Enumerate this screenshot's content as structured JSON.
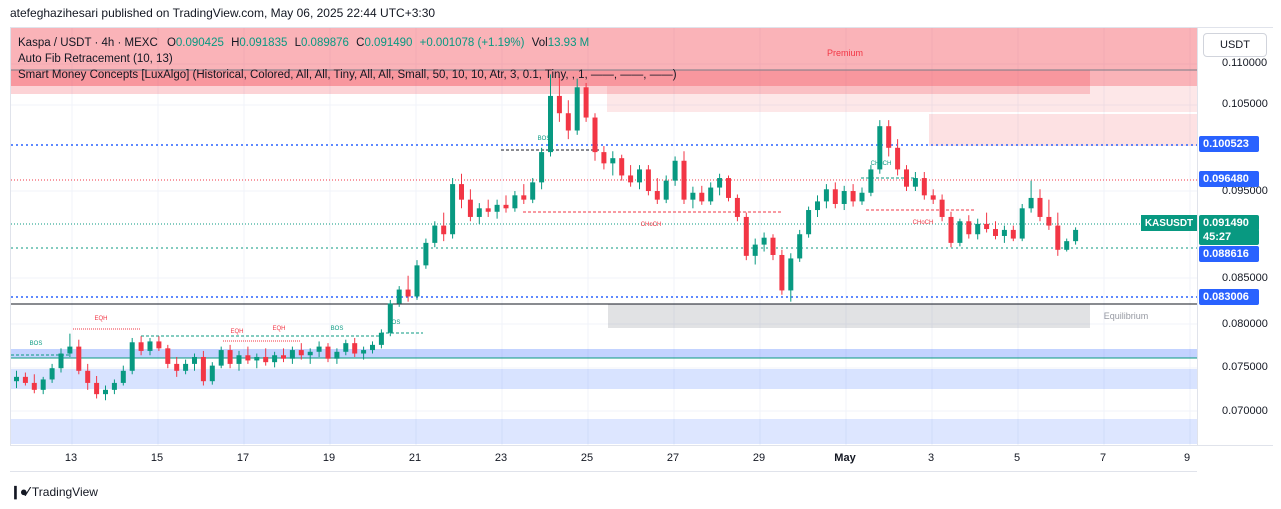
{
  "header": {
    "publish_line": "atefeghazihesari published on TradingView.com, May 06, 2025 22:44 UTC+3:30"
  },
  "legend": {
    "symbol": "Kaspa / USDT · 4h · MEXC",
    "open_label": "O",
    "open": "0.090425",
    "high_label": "H",
    "high": "0.091835",
    "low_label": "L",
    "low": "0.089876",
    "close_label": "C",
    "close": "0.091490",
    "change": "+0.001078 (+1.19%)",
    "vol_label": "Vol",
    "vol": "13.93 M",
    "indicator1": "Auto Fib Retracement (10, 13)",
    "indicator2": "Smart Money Concepts [LuxAlgo] (Historical, Colored, All, All, Tiny, All, All, Small, 50, 10, 10, Atr, 3, 0.1, Tiny, , 1, ——, ——, ——)"
  },
  "currency_button": "USDT",
  "price_axis": {
    "ticks": [
      "0.110000",
      "0.105000",
      "0.095000",
      "0.085000",
      "0.080000",
      "0.075000",
      "0.070000"
    ],
    "tags": [
      {
        "text": "0.100523",
        "color": "#2962ff"
      },
      {
        "text": "0.096480",
        "color": "#2962ff"
      },
      {
        "text": "0.091490",
        "color": "#089981"
      },
      {
        "text": "45:27",
        "color": "#089981"
      },
      {
        "text": "0.088616",
        "color": "#2962ff"
      },
      {
        "text": "0.083006",
        "color": "#2962ff"
      }
    ]
  },
  "ticker_tag": "KASUSDT",
  "time_axis": {
    "labels": [
      "13",
      "15",
      "17",
      "19",
      "21",
      "23",
      "25",
      "27",
      "29",
      "May",
      "3",
      "5",
      "7",
      "9"
    ]
  },
  "chart_labels": {
    "premium": "Premium",
    "equilibrium": "Equilibrium",
    "bos1": "BOS",
    "bos2": "BOS",
    "bos3": "BOS",
    "bos4": "BOS",
    "eqh1": "EQH",
    "eqh2": "EQH",
    "eqh3": "EQH",
    "choch1": "CHoCH",
    "choch2": "CHoCH",
    "choch3": "CHoCH"
  },
  "footer": {
    "brand": "TradingView"
  },
  "chart_data": {
    "type": "candlestick",
    "symbol": "KASUSDT",
    "timeframe": "4h",
    "ylim": [
      0.066,
      0.112
    ],
    "candles": [
      [
        0.074,
        0.0752,
        0.0732,
        0.0745
      ],
      [
        0.0745,
        0.075,
        0.0735,
        0.0738
      ],
      [
        0.0738,
        0.0748,
        0.0726,
        0.073
      ],
      [
        0.073,
        0.0745,
        0.0725,
        0.0742
      ],
      [
        0.0742,
        0.076,
        0.0738,
        0.0755
      ],
      [
        0.0755,
        0.0778,
        0.075,
        0.0772
      ],
      [
        0.0772,
        0.0795,
        0.0768,
        0.078
      ],
      [
        0.078,
        0.0788,
        0.0748,
        0.0752
      ],
      [
        0.0752,
        0.076,
        0.073,
        0.0738
      ],
      [
        0.0738,
        0.0746,
        0.072,
        0.0725
      ],
      [
        0.0725,
        0.0735,
        0.0718,
        0.073
      ],
      [
        0.073,
        0.0742,
        0.0725,
        0.0738
      ],
      [
        0.0738,
        0.0758,
        0.0735,
        0.0752
      ],
      [
        0.0752,
        0.079,
        0.0748,
        0.0785
      ],
      [
        0.0785,
        0.0792,
        0.077,
        0.0775
      ],
      [
        0.0775,
        0.079,
        0.077,
        0.0786
      ],
      [
        0.0786,
        0.0792,
        0.0775,
        0.0778
      ],
      [
        0.0778,
        0.0782,
        0.0755,
        0.076
      ],
      [
        0.076,
        0.0768,
        0.0745,
        0.0752
      ],
      [
        0.0752,
        0.0765,
        0.0748,
        0.076
      ],
      [
        0.076,
        0.0772,
        0.0752,
        0.0768
      ],
      [
        0.0768,
        0.0775,
        0.0735,
        0.074
      ],
      [
        0.074,
        0.0762,
        0.0736,
        0.0758
      ],
      [
        0.0758,
        0.078,
        0.0755,
        0.0776
      ],
      [
        0.0776,
        0.0782,
        0.0755,
        0.076
      ],
      [
        0.076,
        0.0775,
        0.0752,
        0.077
      ],
      [
        0.077,
        0.078,
        0.076,
        0.0764
      ],
      [
        0.0764,
        0.0772,
        0.0755,
        0.0768
      ],
      [
        0.0768,
        0.0778,
        0.0758,
        0.0762
      ],
      [
        0.0762,
        0.0774,
        0.0756,
        0.077
      ],
      [
        0.077,
        0.0778,
        0.0762,
        0.0766
      ],
      [
        0.0766,
        0.078,
        0.076,
        0.0776
      ],
      [
        0.0776,
        0.0784,
        0.0765,
        0.077
      ],
      [
        0.077,
        0.0778,
        0.076,
        0.0774
      ],
      [
        0.0774,
        0.0786,
        0.0768,
        0.078
      ],
      [
        0.078,
        0.0784,
        0.0762,
        0.0766
      ],
      [
        0.0766,
        0.0778,
        0.076,
        0.0774
      ],
      [
        0.0774,
        0.0788,
        0.077,
        0.0784
      ],
      [
        0.0784,
        0.079,
        0.0768,
        0.0772
      ],
      [
        0.0772,
        0.078,
        0.0765,
        0.0776
      ],
      [
        0.0776,
        0.0786,
        0.0772,
        0.0782
      ],
      [
        0.0782,
        0.08,
        0.0778,
        0.0796
      ],
      [
        0.0796,
        0.0834,
        0.0792,
        0.083
      ],
      [
        0.083,
        0.085,
        0.0826,
        0.0846
      ],
      [
        0.0846,
        0.0862,
        0.0832,
        0.0838
      ],
      [
        0.0838,
        0.088,
        0.0834,
        0.0874
      ],
      [
        0.0874,
        0.0905,
        0.087,
        0.09
      ],
      [
        0.09,
        0.0925,
        0.0895,
        0.092
      ],
      [
        0.092,
        0.0935,
        0.0902,
        0.091
      ],
      [
        0.091,
        0.0975,
        0.0905,
        0.0968
      ],
      [
        0.0968,
        0.098,
        0.094,
        0.095
      ],
      [
        0.095,
        0.0962,
        0.0925,
        0.093
      ],
      [
        0.093,
        0.0946,
        0.0922,
        0.094
      ],
      [
        0.094,
        0.095,
        0.093,
        0.0936
      ],
      [
        0.0936,
        0.095,
        0.0928,
        0.0944
      ],
      [
        0.0944,
        0.0955,
        0.0935,
        0.094
      ],
      [
        0.094,
        0.096,
        0.0936,
        0.0955
      ],
      [
        0.0955,
        0.0968,
        0.0945,
        0.095
      ],
      [
        0.095,
        0.0975,
        0.0946,
        0.097
      ],
      [
        0.097,
        0.101,
        0.0962,
        0.1005
      ],
      [
        0.1005,
        0.1095,
        0.1,
        0.107
      ],
      [
        0.107,
        0.1092,
        0.104,
        0.105
      ],
      [
        0.105,
        0.1065,
        0.102,
        0.103
      ],
      [
        0.103,
        0.109,
        0.1025,
        0.108
      ],
      [
        0.108,
        0.1085,
        0.104,
        0.1045
      ],
      [
        0.1045,
        0.105,
        0.0995,
        0.1005
      ],
      [
        0.1005,
        0.1012,
        0.0985,
        0.0992
      ],
      [
        0.0992,
        0.1006,
        0.0978,
        0.0998
      ],
      [
        0.0998,
        0.1002,
        0.0972,
        0.0978
      ],
      [
        0.0978,
        0.099,
        0.0965,
        0.097
      ],
      [
        0.097,
        0.099,
        0.0962,
        0.0985
      ],
      [
        0.0985,
        0.099,
        0.0955,
        0.096
      ],
      [
        0.096,
        0.0975,
        0.0945,
        0.095
      ],
      [
        0.095,
        0.0978,
        0.0946,
        0.0972
      ],
      [
        0.0972,
        0.1,
        0.0966,
        0.0995
      ],
      [
        0.0995,
        0.1006,
        0.0945,
        0.095
      ],
      [
        0.095,
        0.0965,
        0.094,
        0.0958
      ],
      [
        0.0958,
        0.0966,
        0.0944,
        0.0948
      ],
      [
        0.0948,
        0.097,
        0.0944,
        0.0964
      ],
      [
        0.0964,
        0.098,
        0.0955,
        0.0975
      ],
      [
        0.0975,
        0.0978,
        0.0948,
        0.0952
      ],
      [
        0.0952,
        0.0956,
        0.0925,
        0.093
      ],
      [
        0.093,
        0.0935,
        0.088,
        0.0885
      ],
      [
        0.0885,
        0.0905,
        0.0875,
        0.0898
      ],
      [
        0.0898,
        0.0912,
        0.089,
        0.0906
      ],
      [
        0.0906,
        0.091,
        0.088,
        0.0886
      ],
      [
        0.0886,
        0.0892,
        0.084,
        0.0845
      ],
      [
        0.0845,
        0.0888,
        0.0832,
        0.0882
      ],
      [
        0.0882,
        0.0915,
        0.0878,
        0.091
      ],
      [
        0.091,
        0.0942,
        0.0906,
        0.0938
      ],
      [
        0.0938,
        0.0955,
        0.093,
        0.0948
      ],
      [
        0.0948,
        0.0968,
        0.094,
        0.0962
      ],
      [
        0.0962,
        0.097,
        0.094,
        0.0945
      ],
      [
        0.0945,
        0.0966,
        0.0938,
        0.096
      ],
      [
        0.096,
        0.0968,
        0.0942,
        0.0948
      ],
      [
        0.0948,
        0.0964,
        0.0944,
        0.0958
      ],
      [
        0.0958,
        0.099,
        0.0954,
        0.0985
      ],
      [
        0.0985,
        0.1042,
        0.098,
        0.1035
      ],
      [
        0.1035,
        0.1042,
        0.1,
        0.101
      ],
      [
        0.101,
        0.102,
        0.0978,
        0.0985
      ],
      [
        0.0985,
        0.099,
        0.096,
        0.0965
      ],
      [
        0.0965,
        0.0982,
        0.096,
        0.0975
      ],
      [
        0.0975,
        0.0982,
        0.095,
        0.0955
      ],
      [
        0.0955,
        0.0962,
        0.0945,
        0.095
      ],
      [
        0.095,
        0.0956,
        0.0925,
        0.093
      ],
      [
        0.093,
        0.0936,
        0.0895,
        0.09
      ],
      [
        0.09,
        0.0928,
        0.0896,
        0.0925
      ],
      [
        0.0925,
        0.0932,
        0.0905,
        0.091
      ],
      [
        0.091,
        0.0928,
        0.0904,
        0.0922
      ],
      [
        0.0922,
        0.0935,
        0.0912,
        0.0916
      ],
      [
        0.0916,
        0.0925,
        0.0904,
        0.0908
      ],
      [
        0.0908,
        0.092,
        0.09,
        0.0915
      ],
      [
        0.0915,
        0.092,
        0.0902,
        0.0905
      ],
      [
        0.0905,
        0.0945,
        0.0902,
        0.094
      ],
      [
        0.094,
        0.0972,
        0.0935,
        0.0952
      ],
      [
        0.0952,
        0.0962,
        0.0925,
        0.093
      ],
      [
        0.093,
        0.095,
        0.0915,
        0.092
      ],
      [
        0.092,
        0.0935,
        0.0885,
        0.0892
      ],
      [
        0.0892,
        0.0905,
        0.089,
        0.0902
      ],
      [
        0.0902,
        0.0918,
        0.0898,
        0.0915
      ]
    ],
    "horizontal_levels": [
      {
        "price": 0.11,
        "color": "#787b86"
      },
      {
        "price": 0.100523,
        "color": "#2962ff"
      },
      {
        "price": 0.09648,
        "color": "#f23645"
      },
      {
        "price": 0.09149,
        "color": "#089981"
      },
      {
        "price": 0.088616,
        "color": "#089981"
      },
      {
        "price": 0.083006,
        "color": "#2962ff"
      }
    ],
    "zones": [
      "Premium",
      "Equilibrium"
    ]
  }
}
